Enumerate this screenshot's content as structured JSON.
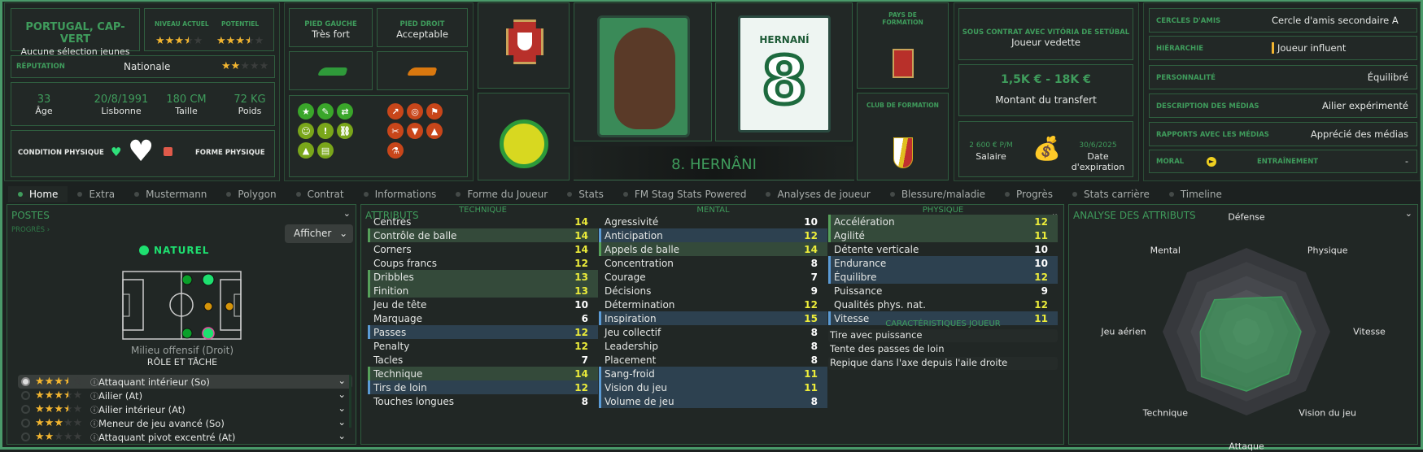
{
  "header": {
    "nationality": "PORTUGAL, CAP-VERT",
    "youth_caps": "Aucune sélection jeunes",
    "current_ability_label": "NIVEAU ACTUEL",
    "current_ability_stars": 3.5,
    "potential_label": "POTENTIEL",
    "potential_stars": 3.5,
    "reputation_label": "RÉPUTATION",
    "reputation_value": "Nationale",
    "reputation_stars": 2,
    "age": "33",
    "age_label": "Âge",
    "birth_date": "20/8/1991",
    "birth_place": "Lisbonne",
    "height": "180 CM",
    "height_label": "Taille",
    "weight": "72 KG",
    "weight_label": "Poids",
    "condition_label": "CONDITION PHYSIQUE",
    "form_label": "FORME PHYSIQUE",
    "left_foot_label": "PIED GAUCHE",
    "left_foot_value": "Très fort",
    "right_foot_label": "PIED DROIT",
    "right_foot_value": "Acceptable",
    "player_name": "8. HERNÂNI",
    "shirt_name": "HERNANÍ",
    "shirt_number": "8",
    "training_country_label": "PAYS DE FORMATION",
    "training_club_label": "CLUB DE FORMATION",
    "contract_label": "SOUS CONTRAT AVEC VITÓRIA DE SETÚBAL",
    "contract_status": "Joueur vedette",
    "transfer_value": "1,5K € - 18K €",
    "transfer_label": "Montant du transfert",
    "wage": "2 600 € P/M",
    "wage_label": "Salaire",
    "expiry": "30/6/2025",
    "expiry_label": "Date d'expiration",
    "colors": {
      "accent": "#3f9c5c",
      "star": "#f2b530",
      "good_trait": "#3aa62a",
      "bad_trait": "#c8461a"
    }
  },
  "info_rows": [
    {
      "label": "CERCLES D'AMIS",
      "value": "Cercle d'amis secondaire A"
    },
    {
      "label": "HIÉRARCHIE",
      "value": "Joueur influent"
    },
    {
      "label": "PERSONNALITÉ",
      "value": "Équilibré"
    },
    {
      "label": "DESCRIPTION DES MÉDIAS",
      "value": "Ailier expérimenté"
    },
    {
      "label": "RAPPORTS AVEC LES MÉDIAS",
      "value": "Apprécié des médias"
    }
  ],
  "moral": {
    "label": "MORAL",
    "training_label": "ENTRAÎNEMENT",
    "training_value": "-"
  },
  "tabs": [
    "Home",
    "Extra",
    "Mustermann",
    "Polygon",
    "Contrat",
    "Informations",
    "Forme du Joueur",
    "Stats",
    "FM Stag Stats Powered",
    "Analyses de joueur",
    "Blessure/maladie",
    "Progrès",
    "Stats carrière",
    "Timeline"
  ],
  "positions": {
    "title": "POSTES",
    "progress_link": "PROGRÈS",
    "show_button": "Afficher",
    "natural_label": "NATUREL",
    "position_name": "Milieu offensif (Droit)",
    "role_title": "RÔLE ET TÂCHE",
    "roles": [
      {
        "stars": 3.5,
        "name": "Attaquant intérieur (So)"
      },
      {
        "stars": 3.5,
        "name": "Ailier (At)"
      },
      {
        "stars": 3.5,
        "name": "Ailier intérieur (At)"
      },
      {
        "stars": 3,
        "name": "Meneur de jeu avancé (So)"
      },
      {
        "stars": 2,
        "name": "Attaquant pivot excentré (At)"
      }
    ]
  },
  "attributes": {
    "title": "ATTRIBUTS",
    "columns": [
      {
        "title": "TECHNIQUE",
        "rows": [
          {
            "name": "Centres",
            "value": 14,
            "hl": ""
          },
          {
            "name": "Contrôle de balle",
            "value": 14,
            "hl": "g"
          },
          {
            "name": "Corners",
            "value": 14,
            "hl": ""
          },
          {
            "name": "Coups francs",
            "value": 12,
            "hl": ""
          },
          {
            "name": "Dribbles",
            "value": 13,
            "hl": "g"
          },
          {
            "name": "Finition",
            "value": 13,
            "hl": "g"
          },
          {
            "name": "Jeu de tête",
            "value": 10,
            "hl": ""
          },
          {
            "name": "Marquage",
            "value": 6,
            "hl": ""
          },
          {
            "name": "Passes",
            "value": 12,
            "hl": "b"
          },
          {
            "name": "Penalty",
            "value": 12,
            "hl": ""
          },
          {
            "name": "Tacles",
            "value": 7,
            "hl": ""
          },
          {
            "name": "Technique",
            "value": 14,
            "hl": "g"
          },
          {
            "name": "Tirs de loin",
            "value": 12,
            "hl": "b"
          },
          {
            "name": "Touches longues",
            "value": 8,
            "hl": ""
          }
        ]
      },
      {
        "title": "MENTAL",
        "rows": [
          {
            "name": "Agressivité",
            "value": 10,
            "hl": ""
          },
          {
            "name": "Anticipation",
            "value": 12,
            "hl": "b"
          },
          {
            "name": "Appels de balle",
            "value": 14,
            "hl": "g"
          },
          {
            "name": "Concentration",
            "value": 8,
            "hl": ""
          },
          {
            "name": "Courage",
            "value": 7,
            "hl": ""
          },
          {
            "name": "Décisions",
            "value": 9,
            "hl": ""
          },
          {
            "name": "Détermination",
            "value": 12,
            "hl": ""
          },
          {
            "name": "Inspiration",
            "value": 15,
            "hl": "b"
          },
          {
            "name": "Jeu collectif",
            "value": 8,
            "hl": ""
          },
          {
            "name": "Leadership",
            "value": 8,
            "hl": ""
          },
          {
            "name": "Placement",
            "value": 8,
            "hl": ""
          },
          {
            "name": "Sang-froid",
            "value": 11,
            "hl": "b"
          },
          {
            "name": "Vision du jeu",
            "value": 11,
            "hl": "b"
          },
          {
            "name": "Volume de jeu",
            "value": 8,
            "hl": "b"
          }
        ]
      },
      {
        "title": "PHYSIQUE",
        "rows": [
          {
            "name": "Accélération",
            "value": 12,
            "hl": "g"
          },
          {
            "name": "Agilité",
            "value": 11,
            "hl": "g"
          },
          {
            "name": "Détente verticale",
            "value": 10,
            "hl": ""
          },
          {
            "name": "Endurance",
            "value": 10,
            "hl": "b"
          },
          {
            "name": "Équilibre",
            "value": 12,
            "hl": "b"
          },
          {
            "name": "Puissance",
            "value": 9,
            "hl": ""
          },
          {
            "name": "Qualités phys. nat.",
            "value": 12,
            "hl": ""
          },
          {
            "name": "Vitesse",
            "value": 11,
            "hl": "b"
          }
        ]
      }
    ],
    "traits_title": "CARACTÉRISTIQUES JOUEUR",
    "traits": [
      "Tire avec puissance",
      "Tente des passes de loin",
      "Repique dans l'axe depuis l'aile droite"
    ]
  },
  "analysis": {
    "title": "ANALYSE DES ATTRIBUTS",
    "chart_data": {
      "type": "radar",
      "axes": [
        "Défense",
        "Physique",
        "Vitesse",
        "Vision du jeu",
        "Attaque",
        "Technique",
        "Jeu aérien",
        "Mental"
      ],
      "values": [
        8,
        11.8,
        13,
        14.2,
        14.2,
        15.2,
        11,
        10.8
      ],
      "max": 20,
      "color": "#3f9c5c"
    }
  }
}
